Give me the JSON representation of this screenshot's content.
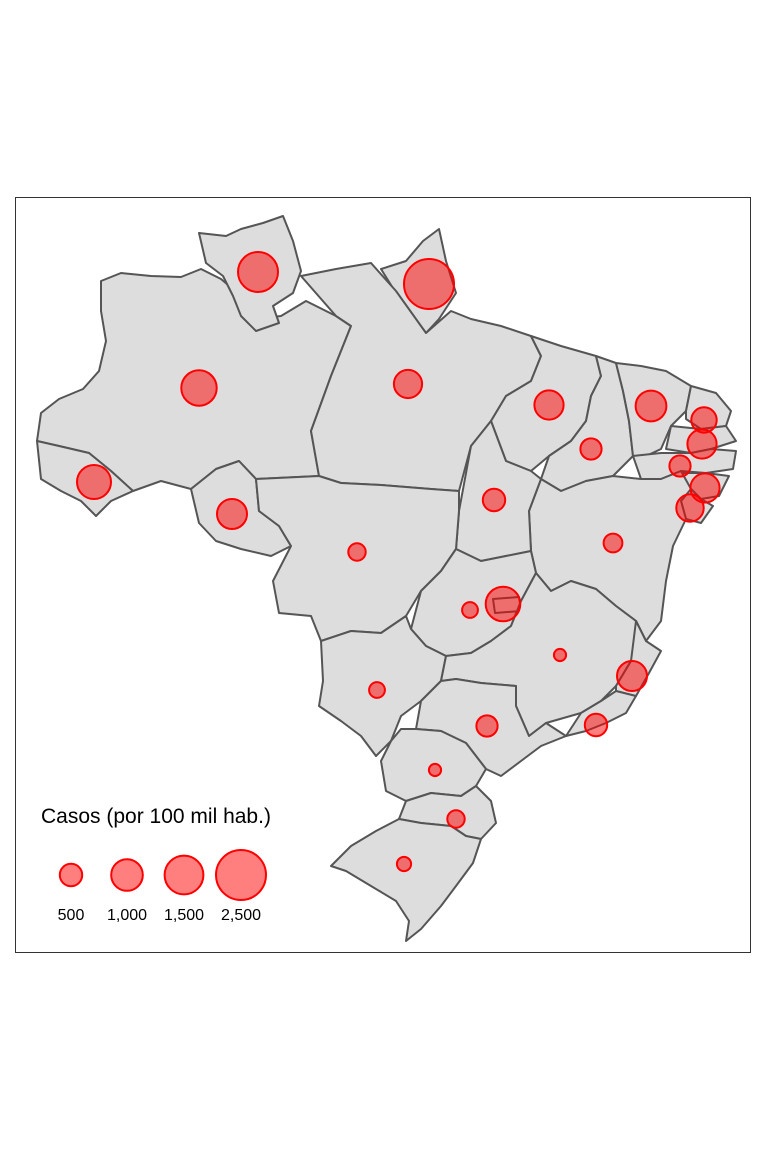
{
  "map": {
    "name": "Brazil",
    "base_fill": "#dddddd",
    "border_color": "#555555",
    "bubble_fill": "#ff0000",
    "bubble_stroke": "#ff0000"
  },
  "legend": {
    "title": "Casos (por 100 mil hab.)",
    "items": [
      {
        "value": 500,
        "label": "500"
      },
      {
        "value": 1000,
        "label": "1,000"
      },
      {
        "value": 1500,
        "label": "1,500"
      },
      {
        "value": 2500,
        "label": "2,500"
      }
    ]
  },
  "chart_data": {
    "type": "bubble-map",
    "region": "Brazil (states)",
    "value_label": "Casos (por 100 mil hab.)",
    "series": [
      {
        "state": "RR",
        "value": 1600
      },
      {
        "state": "AP",
        "value": 2500
      },
      {
        "state": "AM",
        "value": 1250
      },
      {
        "state": "PA",
        "value": 800
      },
      {
        "state": "AC",
        "value": 1150
      },
      {
        "state": "RO",
        "value": 900
      },
      {
        "state": "MA",
        "value": 850
      },
      {
        "state": "PI",
        "value": 450
      },
      {
        "state": "CE",
        "value": 950
      },
      {
        "state": "RN",
        "value": 650
      },
      {
        "state": "PB",
        "value": 850
      },
      {
        "state": "PE",
        "value": 450
      },
      {
        "state": "AL",
        "value": 850
      },
      {
        "state": "SE",
        "value": 750
      },
      {
        "state": "TO",
        "value": 500
      },
      {
        "state": "BA",
        "value": 350
      },
      {
        "state": "MT",
        "value": 300
      },
      {
        "state": "GO",
        "value": 250
      },
      {
        "state": "DF",
        "value": 1200
      },
      {
        "state": "MG",
        "value": 150
      },
      {
        "state": "ES",
        "value": 900
      },
      {
        "state": "RJ",
        "value": 500
      },
      {
        "state": "MS",
        "value": 250
      },
      {
        "state": "SP",
        "value": 450
      },
      {
        "state": "PR",
        "value": 150
      },
      {
        "state": "SC",
        "value": 300
      },
      {
        "state": "RS",
        "value": 200
      }
    ]
  }
}
